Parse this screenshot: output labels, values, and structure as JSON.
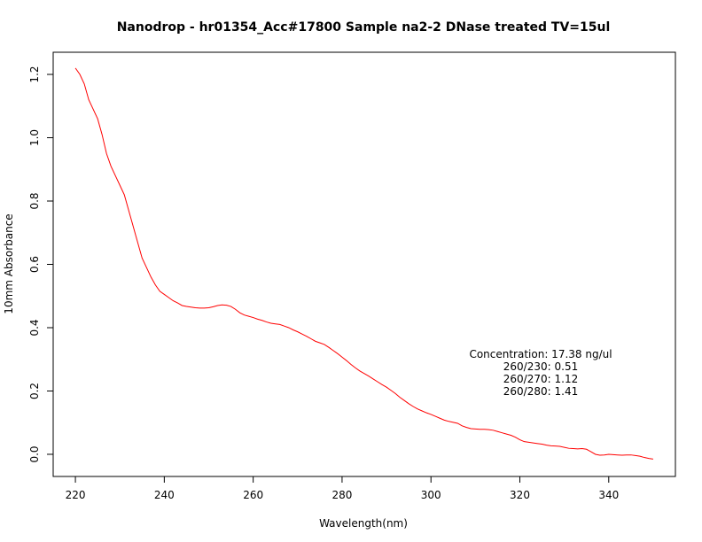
{
  "chart_data": {
    "type": "line",
    "title": "Nanodrop - hr01354_Acc#17800 Sample na2-2 DNase treated TV=15ul",
    "xlabel": "Wavelength(nm)",
    "ylabel": "10mm Absorbance",
    "xlim": [
      215,
      355
    ],
    "ylim": [
      -0.07,
      1.27
    ],
    "x_ticks": [
      220,
      240,
      260,
      280,
      300,
      320,
      340
    ],
    "y_ticks": [
      0.0,
      0.2,
      0.4,
      0.6,
      0.8,
      1.0,
      1.2
    ],
    "x_tick_labels": [
      "220",
      "240",
      "260",
      "280",
      "300",
      "320",
      "340"
    ],
    "y_tick_labels": [
      "0.0",
      "0.2",
      "0.4",
      "0.6",
      "0.8",
      "1.0",
      "1.2"
    ],
    "grid": false,
    "series": [
      {
        "color": "#ff0000",
        "x": [
          220,
          221,
          222,
          223,
          224,
          225,
          226,
          227,
          228,
          229,
          230,
          231,
          232,
          233,
          234,
          235,
          236,
          237,
          238,
          239,
          240,
          241,
          242,
          243,
          244,
          245,
          246,
          247,
          248,
          249,
          250,
          251,
          252,
          253,
          254,
          255,
          256,
          257,
          258,
          259,
          260,
          261,
          262,
          263,
          264,
          265,
          266,
          267,
          268,
          269,
          270,
          271,
          272,
          273,
          274,
          275,
          276,
          277,
          278,
          279,
          280,
          281,
          282,
          283,
          284,
          285,
          286,
          287,
          288,
          289,
          290,
          291,
          292,
          293,
          294,
          295,
          296,
          297,
          298,
          299,
          300,
          301,
          302,
          303,
          304,
          305,
          306,
          307,
          308,
          309,
          310,
          311,
          312,
          313,
          314,
          315,
          316,
          317,
          318,
          319,
          320,
          321,
          322,
          323,
          324,
          325,
          326,
          327,
          328,
          329,
          330,
          331,
          332,
          333,
          334,
          335,
          336,
          337,
          338,
          339,
          340,
          341,
          342,
          343,
          344,
          345,
          346,
          347,
          348,
          349,
          350
        ],
        "y": [
          1.22,
          1.2,
          1.17,
          1.12,
          1.09,
          1.06,
          1.01,
          0.95,
          0.91,
          0.88,
          0.85,
          0.82,
          0.77,
          0.72,
          0.67,
          0.62,
          0.59,
          0.56,
          0.535,
          0.515,
          0.505,
          0.495,
          0.485,
          0.478,
          0.47,
          0.467,
          0.465,
          0.463,
          0.462,
          0.462,
          0.463,
          0.466,
          0.47,
          0.472,
          0.471,
          0.467,
          0.458,
          0.447,
          0.44,
          0.436,
          0.432,
          0.427,
          0.423,
          0.418,
          0.414,
          0.412,
          0.41,
          0.405,
          0.4,
          0.393,
          0.387,
          0.38,
          0.373,
          0.365,
          0.357,
          0.352,
          0.347,
          0.338,
          0.328,
          0.318,
          0.307,
          0.296,
          0.284,
          0.273,
          0.263,
          0.255,
          0.247,
          0.238,
          0.229,
          0.22,
          0.212,
          0.202,
          0.192,
          0.18,
          0.17,
          0.16,
          0.151,
          0.143,
          0.137,
          0.131,
          0.126,
          0.12,
          0.114,
          0.108,
          0.104,
          0.101,
          0.098,
          0.09,
          0.085,
          0.081,
          0.08,
          0.079,
          0.079,
          0.078,
          0.076,
          0.072,
          0.068,
          0.064,
          0.06,
          0.054,
          0.046,
          0.04,
          0.038,
          0.036,
          0.034,
          0.032,
          0.029,
          0.027,
          0.026,
          0.025,
          0.022,
          0.019,
          0.018,
          0.017,
          0.018,
          0.016,
          0.008,
          0.0,
          -0.003,
          -0.002,
          0.0,
          -0.001,
          -0.002,
          -0.003,
          -0.002,
          -0.002,
          -0.004,
          -0.006,
          -0.01,
          -0.013,
          -0.015
        ]
      }
    ],
    "annotations": [
      "Concentration: 17.38 ng/ul",
      "260/230: 0.51",
      "260/270: 1.12",
      "260/280: 1.41"
    ]
  }
}
